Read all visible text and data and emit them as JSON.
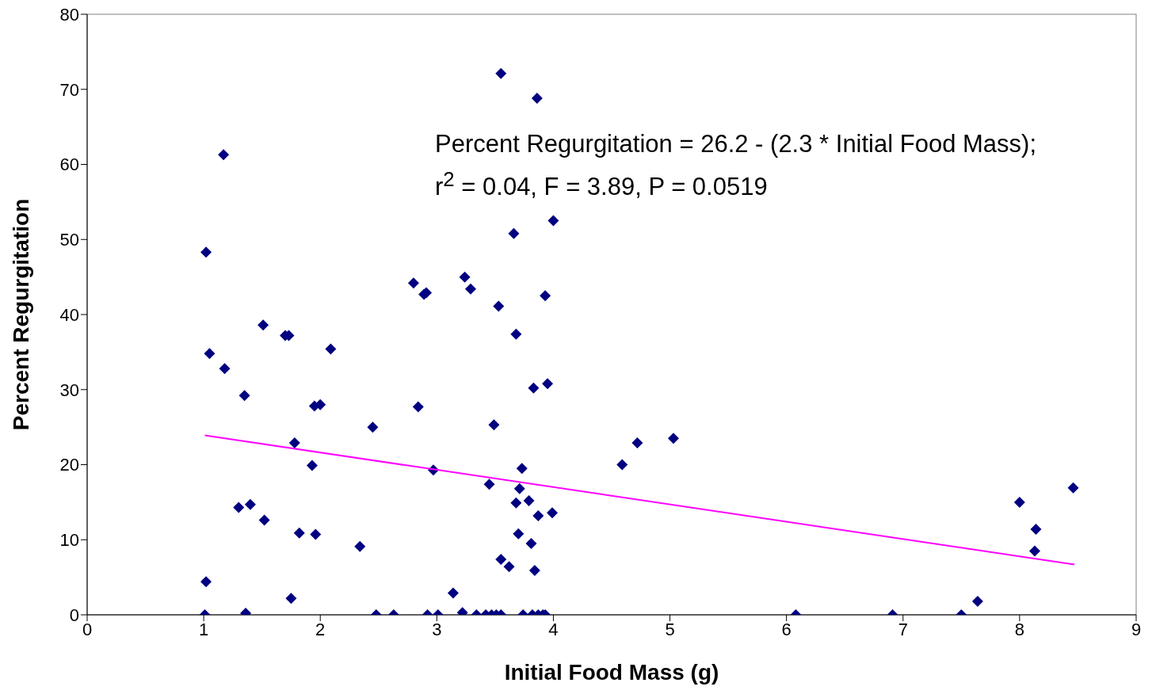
{
  "chart_data": {
    "type": "scatter",
    "xlabel": "Initial Food Mass (g)",
    "ylabel": "Percent Regurgitation",
    "xlim": [
      0,
      9
    ],
    "xticks": [
      0,
      1,
      2,
      3,
      4,
      5,
      6,
      7,
      8,
      9
    ],
    "ylim": [
      0,
      80
    ],
    "yticks": [
      0,
      10,
      20,
      30,
      40,
      50,
      60,
      70,
      80
    ],
    "marker": "diamond",
    "annotations": [
      "Percent Regurgitation = 26.2 - (2.3 * Initial Food Mass);",
      "r$^{2}$ = 0.04, F = 3.89, P = 0.0519"
    ],
    "series": [
      {
        "color": "#000080",
        "x": [
          1.01,
          1.02,
          1.02,
          1.05,
          1.17,
          1.18,
          1.35,
          1.3,
          1.4,
          1.36,
          1.51,
          1.52,
          1.7,
          1.73,
          1.75,
          1.78,
          1.82,
          1.93,
          1.95,
          1.96,
          2.0,
          2.09,
          2.34,
          2.45,
          2.48,
          2.63,
          2.8,
          2.84,
          2.89,
          2.91,
          2.92,
          2.97,
          3.01,
          3.14,
          3.22,
          3.24,
          3.29,
          3.34,
          3.42,
          3.45,
          3.47,
          3.49,
          3.51,
          3.53,
          3.55,
          3.55,
          3.55,
          3.62,
          3.66,
          3.68,
          3.68,
          3.7,
          3.71,
          3.73,
          3.74,
          3.79,
          3.81,
          3.82,
          3.83,
          3.84,
          3.86,
          3.87,
          3.87,
          3.91,
          3.93,
          3.93,
          3.95,
          3.99,
          4.0,
          4.59,
          4.72,
          5.03,
          6.08,
          6.91,
          7.5,
          7.64,
          8.0,
          8.14,
          8.13,
          8.46
        ],
        "values": [
          0,
          4.4,
          48.3,
          34.8,
          61.3,
          32.8,
          29.2,
          14.3,
          14.7,
          0.2,
          38.6,
          12.6,
          37.2,
          37.2,
          2.2,
          22.9,
          10.9,
          19.9,
          27.8,
          10.7,
          28.0,
          35.4,
          9.1,
          25.0,
          0,
          0,
          44.2,
          27.7,
          42.7,
          42.9,
          0,
          19.3,
          0,
          2.9,
          0.3,
          45.0,
          43.4,
          0,
          0,
          17.4,
          0,
          25.3,
          0,
          41.1,
          7.4,
          72.1,
          0,
          6.4,
          50.8,
          37.4,
          14.9,
          10.8,
          16.8,
          19.5,
          0,
          15.2,
          9.5,
          0,
          30.2,
          5.9,
          68.8,
          13.2,
          0,
          0,
          0,
          42.5,
          30.8,
          13.6,
          52.5,
          20.0,
          22.9,
          23.5,
          0,
          0,
          0,
          1.8,
          15.0,
          11.4,
          8.5,
          16.9
        ]
      },
      {
        "type": "line",
        "marker": "none",
        "color": "#ff00ff",
        "x": [
          1.01,
          8.47
        ],
        "values": [
          23.9,
          6.7
        ]
      }
    ]
  }
}
